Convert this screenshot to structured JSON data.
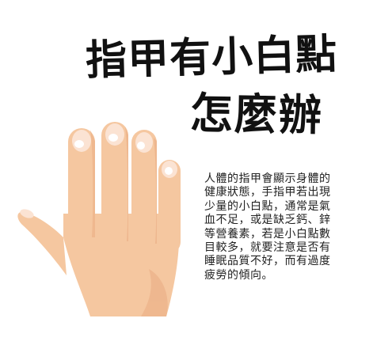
{
  "title": {
    "line1": "指甲有小白點",
    "line2": "怎麼辦"
  },
  "body": {
    "lines": [
      "人體的指甲會顯示身體的",
      "健康狀態，手指甲若出現",
      "少量的小白點，通常是氣",
      "血不足，或是缺乏鈣、鋅",
      "等營養素，若是小白點數",
      "目較多，就要注意是否有",
      "睡眠品質不好，而有過度",
      "疲勞的傾向。"
    ]
  },
  "illustration": {
    "icon": "hand-illustration",
    "skin_color": "#f5c7a0",
    "skin_shadow": "#e9ab82",
    "nail_color": "#fbe3d3",
    "spot_color": "#ffffff"
  }
}
